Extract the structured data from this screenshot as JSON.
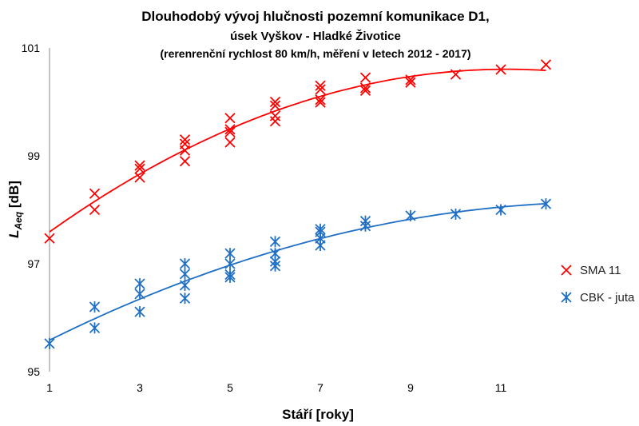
{
  "chart_data": {
    "type": "scatter",
    "title": "Dlouhodobý vývoj hlučnosti pozemní komunikace D1,",
    "subtitle": "úsek Vyškov - Hladké Životice",
    "subtitle2": "(rerenrenční rychlost 80 km/h, měření v letech 2012 - 2017)",
    "xlabel": "Stáří [roky]",
    "ylabel_main": "L",
    "ylabel_sub": "Aeq",
    "ylabel_unit": " [dB]",
    "xlim": [
      1,
      12
    ],
    "ylim": [
      95,
      101
    ],
    "xticks": [
      "1",
      "3",
      "5",
      "7",
      "9",
      "11"
    ],
    "yticks": [
      "95",
      "97",
      "99",
      "101"
    ],
    "grid": false,
    "legend_position": "right",
    "trendline": "polynomial order 2",
    "series": [
      {
        "name": "SMA 11",
        "color": "#ff0000",
        "marker": "x",
        "points": [
          [
            1,
            97.47
          ],
          [
            2,
            98.3
          ],
          [
            2,
            98.0
          ],
          [
            3,
            98.82
          ],
          [
            3,
            98.76
          ],
          [
            3,
            98.6
          ],
          [
            4,
            99.3
          ],
          [
            4,
            99.22
          ],
          [
            4,
            99.1
          ],
          [
            4,
            98.9
          ],
          [
            5,
            99.7
          ],
          [
            5,
            99.49
          ],
          [
            5,
            99.44
          ],
          [
            5,
            99.25
          ],
          [
            6,
            100.0
          ],
          [
            6,
            99.93
          ],
          [
            6,
            99.74
          ],
          [
            6,
            99.64
          ],
          [
            7,
            100.3
          ],
          [
            7,
            100.23
          ],
          [
            7,
            100.04
          ],
          [
            7,
            99.99
          ],
          [
            8,
            100.45
          ],
          [
            8,
            100.26
          ],
          [
            8,
            100.21
          ],
          [
            9,
            100.41
          ],
          [
            9,
            100.36
          ],
          [
            10,
            100.51
          ],
          [
            11,
            100.6
          ],
          [
            12,
            100.69
          ]
        ]
      },
      {
        "name": "CBK - juta",
        "color": "#1f6fc5",
        "marker": "asterisk",
        "points": [
          [
            1,
            95.52
          ],
          [
            2,
            96.2
          ],
          [
            2,
            95.81
          ],
          [
            3,
            96.63
          ],
          [
            3,
            96.44
          ],
          [
            3,
            96.11
          ],
          [
            4,
            97.0
          ],
          [
            4,
            96.81
          ],
          [
            4,
            96.6
          ],
          [
            4,
            96.36
          ],
          [
            5,
            97.19
          ],
          [
            5,
            97.0
          ],
          [
            5,
            96.8
          ],
          [
            5,
            96.75
          ],
          [
            6,
            97.41
          ],
          [
            6,
            97.19
          ],
          [
            6,
            97.04
          ],
          [
            6,
            96.96
          ],
          [
            7,
            97.64
          ],
          [
            7,
            97.59
          ],
          [
            7,
            97.47
          ],
          [
            7,
            97.34
          ],
          [
            8,
            97.79
          ],
          [
            8,
            97.7
          ],
          [
            9,
            97.89
          ],
          [
            10,
            97.92
          ],
          [
            11,
            98.0
          ],
          [
            12,
            98.11
          ]
        ]
      }
    ]
  }
}
